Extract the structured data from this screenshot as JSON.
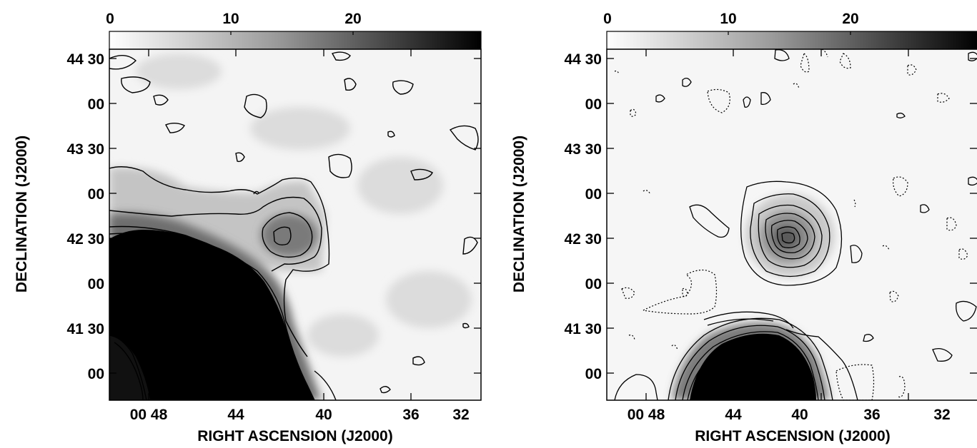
{
  "chart_data": [
    {
      "type": "heatmap",
      "panel": "left",
      "colorbar": {
        "ticks": [
          "0",
          "10",
          "20"
        ],
        "range": [
          0,
          29
        ],
        "colormap": "white-to-black"
      },
      "x_ticks": [
        "00 48",
        "44",
        "40",
        "36",
        "32"
      ],
      "y_ticks": [
        "44 30",
        "00",
        "43 30",
        "00",
        "42 30",
        "00",
        "41 30",
        "00"
      ],
      "xlabel": "RIGHT ASCENSION (J2000)",
      "ylabel": "DECLINATION (J2000)",
      "features": [
        {
          "kind": "saturated-region",
          "location": "lower-left"
        },
        {
          "kind": "emission-peak",
          "location": "center-left",
          "contour_levels": 4
        }
      ]
    },
    {
      "type": "heatmap",
      "panel": "right",
      "colorbar": {
        "ticks": [
          "0",
          "10",
          "20"
        ],
        "range": [
          0,
          29
        ],
        "colormap": "white-to-black"
      },
      "x_ticks": [
        "00 48",
        "44",
        "40",
        "36",
        "32"
      ],
      "y_ticks": [
        "44 30",
        "00",
        "43 30",
        "00",
        "42 30",
        "00",
        "41 30",
        "00"
      ],
      "xlabel": "RIGHT ASCENSION (J2000)",
      "ylabel": "DECLINATION (J2000)",
      "features": [
        {
          "kind": "compact-source",
          "location": "center",
          "contour_levels": 7
        },
        {
          "kind": "saturated-region",
          "location": "bottom-center"
        },
        {
          "kind": "negative-contours",
          "style": "dotted"
        }
      ]
    }
  ]
}
